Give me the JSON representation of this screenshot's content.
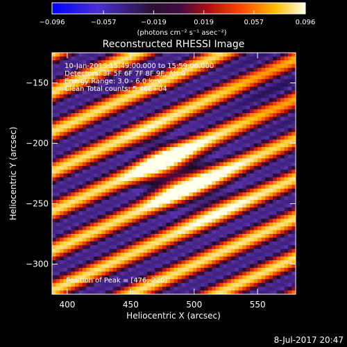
{
  "chart_data": {
    "type": "heatmap",
    "title": "Reconstructed RHESSI Image",
    "xlabel": "Heliocentric X (arcsec)",
    "ylabel": "Heliocentric Y (arcsec)",
    "xlim": [
      388,
      580
    ],
    "ylim": [
      -325,
      -125
    ],
    "x_ticks": [
      400,
      450,
      500,
      550
    ],
    "y_ticks": [
      -150,
      -200,
      -250,
      -300
    ],
    "x_tick_labels": [
      "400",
      "450",
      "500",
      "550"
    ],
    "y_tick_labels": [
      "−150",
      "−200",
      "−250",
      "−300"
    ],
    "colorbar": {
      "min": -0.096,
      "max": 0.096,
      "ticks": [
        -0.096,
        -0.057,
        -0.019,
        0.019,
        0.057,
        0.096
      ],
      "tick_labels": [
        "−0.096",
        "−0.057",
        "−0.019",
        "0.019",
        "0.057",
        "0.096"
      ],
      "unit_label": "(photons cm⁻² s⁻¹ asec⁻²)",
      "colormap": [
        "#0000ff",
        "#5a2cc0",
        "#201020",
        "#3a0a4a",
        "#c01010",
        "#ff5000",
        "#ffc000",
        "#ffffe0"
      ]
    },
    "annotations": [
      "10-Jan-2015 15:49:00.000 to 15:59:00.000",
      "Detectors: 3F 5F 6F 7F 8F 9F, Att 0",
      "Energy Range: 3.0 - 6.0 keV",
      "Clean      Total counts: 5.46E+04"
    ],
    "peak_label": "Position of Peak = [476,-220]",
    "peak": [
      476,
      -220
    ],
    "grid": false
  },
  "footer": {
    "timestamp": "8-Jul-2017 20:47"
  }
}
